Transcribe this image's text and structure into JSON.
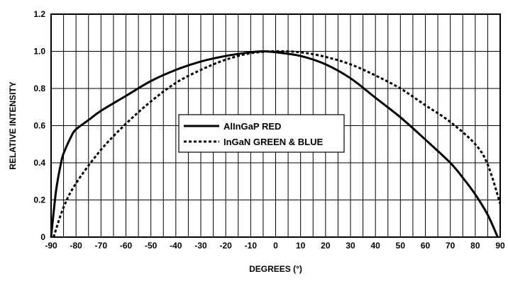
{
  "chart_data": {
    "type": "line",
    "xlabel": "DEGREES (°)",
    "ylabel": "RELATIVE INTENSITY",
    "xlim": [
      -90,
      90
    ],
    "ylim": [
      0,
      1.2
    ],
    "x_ticks": [
      -90,
      -80,
      -70,
      -60,
      -50,
      -40,
      -30,
      -20,
      -10,
      0,
      10,
      20,
      30,
      40,
      50,
      60,
      70,
      80,
      90
    ],
    "y_ticks": [
      "0",
      "0.2",
      "0.4",
      "0.6",
      "0.8",
      "1.0",
      "1.2"
    ],
    "y_tick_values": [
      0,
      0.2,
      0.4,
      0.6,
      0.8,
      1.0,
      1.2
    ],
    "minor_x_step": 5,
    "grid": true,
    "legend_position": "center",
    "series": [
      {
        "name": "AlInGaP RED",
        "style": "solid",
        "color": "#000000",
        "x": [
          -90,
          -88,
          -86,
          -85,
          -82,
          -80,
          -75,
          -70,
          -60,
          -50,
          -40,
          -30,
          -20,
          -10,
          -5,
          0,
          10,
          20,
          30,
          40,
          50,
          60,
          70,
          75,
          80,
          85,
          89
        ],
        "y": [
          0.0,
          0.25,
          0.4,
          0.45,
          0.54,
          0.58,
          0.63,
          0.68,
          0.76,
          0.84,
          0.9,
          0.945,
          0.975,
          0.995,
          1.0,
          0.995,
          0.975,
          0.93,
          0.855,
          0.75,
          0.645,
          0.525,
          0.4,
          0.32,
          0.23,
          0.12,
          0.0
        ]
      },
      {
        "name": "InGaN GREEN & BLUE",
        "style": "dashed",
        "color": "#000000",
        "x": [
          -89,
          -85,
          -80,
          -70,
          -60,
          -50,
          -40,
          -30,
          -20,
          -10,
          0,
          10,
          20,
          30,
          40,
          50,
          60,
          70,
          80,
          85,
          90
        ],
        "y": [
          0.0,
          0.16,
          0.29,
          0.47,
          0.61,
          0.73,
          0.83,
          0.9,
          0.955,
          0.99,
          1.0,
          0.995,
          0.97,
          0.93,
          0.87,
          0.8,
          0.71,
          0.62,
          0.5,
          0.39,
          0.18
        ]
      }
    ]
  }
}
